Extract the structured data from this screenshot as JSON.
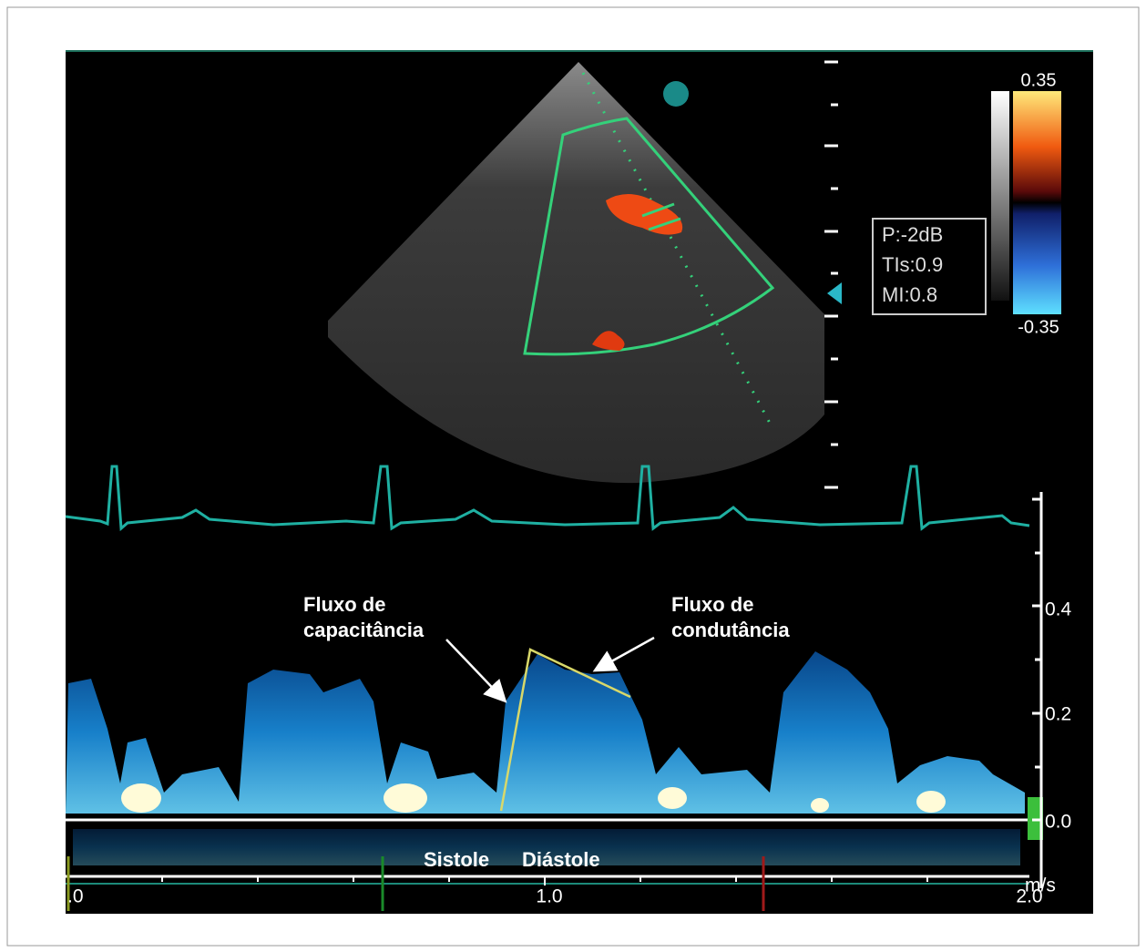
{
  "ultrasound": {
    "power": "P:-2dB",
    "tis": "TIs:0.9",
    "mi": "MI:0.8",
    "color_scale_max": "0.35",
    "color_scale_min": "-0.35"
  },
  "doppler": {
    "velocity_ticks": [
      "0.4",
      "0.2",
      "0.0"
    ],
    "unit": "m/s",
    "time_ticks": [
      ".0",
      "1.0",
      "2.0"
    ],
    "annotations": [
      {
        "lines": [
          "Fluxo de",
          "capacitância"
        ]
      },
      {
        "lines": [
          "Fluxo de",
          "condutância"
        ]
      }
    ],
    "phases": [
      "Sistole",
      "Diástole"
    ]
  }
}
